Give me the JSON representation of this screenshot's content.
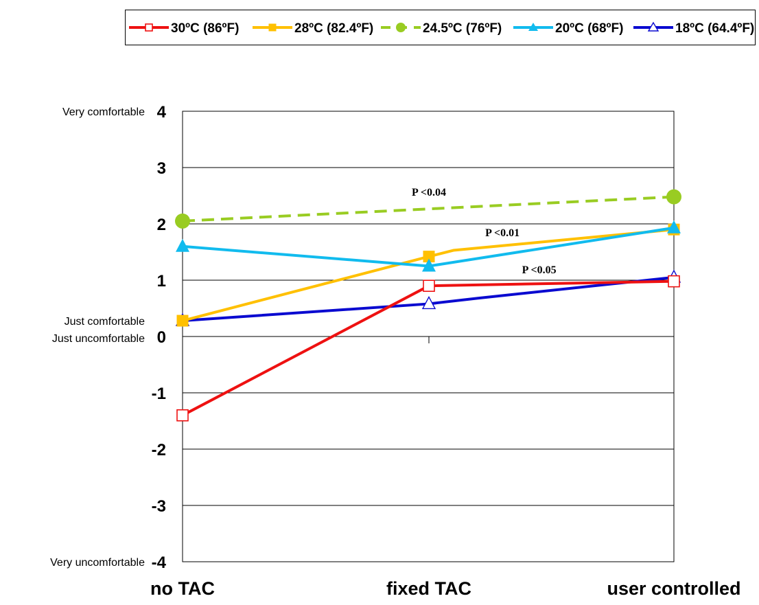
{
  "chart_data": {
    "type": "line",
    "categories": [
      "no TAC",
      "fixed TAC",
      "user controlled"
    ],
    "ylim": [
      -4,
      4
    ],
    "yticks": [
      -4,
      -3,
      -2,
      -1,
      0,
      1,
      2,
      3,
      4
    ],
    "grid": true,
    "legend_position": "top",
    "scale_labels": [
      {
        "value": 4,
        "text": "Very comfortable"
      },
      {
        "value": 0,
        "text": "Just comfortable",
        "position": "above"
      },
      {
        "value": 0,
        "text": "Just uncomfortable",
        "position": "below"
      },
      {
        "value": -4,
        "text": "Very uncomfortable"
      }
    ],
    "series": [
      {
        "name": "30ºC (86ºF)",
        "color": "#ee1111",
        "marker": "square-open",
        "dashed": false,
        "x": [
          0,
          1,
          2
        ],
        "values": [
          -1.4,
          0.9,
          0.98
        ]
      },
      {
        "name": "28ºC (82.4ºF)",
        "color": "#ffc000",
        "marker": "square-filled",
        "dashed": false,
        "x": [
          0,
          1,
          1.1,
          2
        ],
        "values": [
          0.28,
          1.42,
          1.53,
          1.9
        ]
      },
      {
        "name": "24.5ºC (76ºF)",
        "color": "#99cc22",
        "marker": "circle-filled",
        "dashed": true,
        "x": [
          0,
          2
        ],
        "values": [
          2.05,
          2.48
        ]
      },
      {
        "name": "20ºC (68ºF)",
        "color": "#11bbee",
        "marker": "triangle-filled",
        "dashed": false,
        "x": [
          0,
          1,
          2
        ],
        "values": [
          1.6,
          1.25,
          1.93
        ]
      },
      {
        "name": "18ºC (64.4ºF)",
        "color": "#0a0ad0",
        "marker": "triangle-open",
        "dashed": false,
        "x": [
          0,
          1,
          1.2,
          2
        ],
        "values": [
          0.28,
          0.58,
          0.68,
          1.05
        ]
      }
    ],
    "annotations": [
      {
        "text": "P <0.04",
        "x": 1.0,
        "y": 2.5
      },
      {
        "text": "P <0.01",
        "x": 1.3,
        "y": 1.78
      },
      {
        "text": "P <0.05",
        "x": 1.45,
        "y": 1.12
      }
    ]
  }
}
